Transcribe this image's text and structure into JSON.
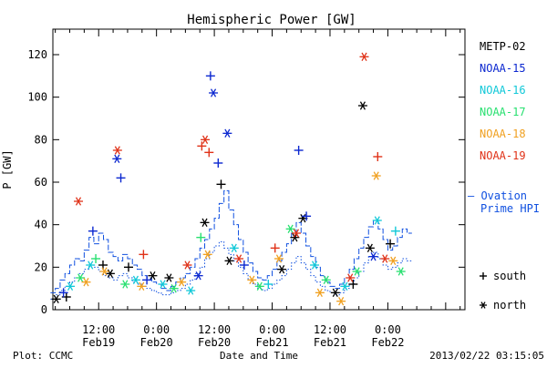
{
  "chart_data": {
    "type": "scatter",
    "title": "Hemispheric Power [GW]",
    "ylabel": "P [GW]",
    "xlabel": "Date and Time",
    "ylim": [
      0,
      132
    ],
    "yticks": [
      0,
      20,
      40,
      60,
      80,
      100,
      120
    ],
    "xlim_hours": [
      -21.5,
      64
    ],
    "xtick_labels": [
      {
        "top": "12:00",
        "bottom": "Feb19",
        "hour": -12
      },
      {
        "top": "0:00",
        "bottom": "Feb20",
        "hour": 0
      },
      {
        "top": "12:00",
        "bottom": "Feb20",
        "hour": 12
      },
      {
        "top": "0:00",
        "bottom": "Feb21",
        "hour": 24
      },
      {
        "top": "12:00",
        "bottom": "Feb21",
        "hour": 36
      },
      {
        "top": "0:00",
        "bottom": "Feb22",
        "hour": 48
      }
    ],
    "grid": false,
    "legend_position": "right",
    "legend": [
      {
        "name": "METP-02",
        "color": "#000000"
      },
      {
        "name": "NOAA-15",
        "color": "#0c28d0"
      },
      {
        "name": "NOAA-16",
        "color": "#10c8d8"
      },
      {
        "name": "NOAA-17",
        "color": "#28e070"
      },
      {
        "name": "NOAA-18",
        "color": "#f0a020"
      },
      {
        "name": "NOAA-19",
        "color": "#e03218"
      }
    ],
    "ovation_label": [
      "— Ovation",
      "Prime HPI"
    ],
    "ovation_color": "#1050e0",
    "marker_legend": [
      {
        "symbol": "+",
        "label": "south"
      },
      {
        "symbol": "*",
        "label": "north"
      }
    ],
    "ovation_north": [
      [
        -21.5,
        8
      ],
      [
        -20.5,
        10
      ],
      [
        -19.5,
        14
      ],
      [
        -18.5,
        17
      ],
      [
        -17.5,
        21
      ],
      [
        -16.5,
        24
      ],
      [
        -15.5,
        23
      ],
      [
        -14.5,
        28
      ],
      [
        -13.5,
        34
      ],
      [
        -12.5,
        31
      ],
      [
        -11.5,
        36
      ],
      [
        -10.5,
        33
      ],
      [
        -9.5,
        27
      ],
      [
        -8.5,
        25
      ],
      [
        -7.5,
        23
      ],
      [
        -6.5,
        26
      ],
      [
        -5.5,
        24
      ],
      [
        -4.5,
        21
      ],
      [
        -3.5,
        19
      ],
      [
        -2.5,
        16
      ],
      [
        -1.5,
        15
      ],
      [
        -0.5,
        13
      ],
      [
        0.5,
        12
      ],
      [
        1.5,
        10
      ],
      [
        2.5,
        9
      ],
      [
        3.5,
        11
      ],
      [
        4.5,
        13
      ],
      [
        5.5,
        15
      ],
      [
        6.5,
        17
      ],
      [
        7.5,
        20
      ],
      [
        8.5,
        24
      ],
      [
        9.5,
        29
      ],
      [
        10.5,
        33
      ],
      [
        11.5,
        38
      ],
      [
        12.5,
        43
      ],
      [
        13.5,
        50
      ],
      [
        14.5,
        56
      ],
      [
        15.5,
        47
      ],
      [
        16.5,
        40
      ],
      [
        17.5,
        33
      ],
      [
        18.5,
        27
      ],
      [
        19.5,
        22
      ],
      [
        20.5,
        18
      ],
      [
        21.5,
        15
      ],
      [
        22.5,
        14
      ],
      [
        23.5,
        16
      ],
      [
        24.5,
        19
      ],
      [
        25.5,
        23
      ],
      [
        26.5,
        27
      ],
      [
        27.5,
        31
      ],
      [
        28.5,
        36
      ],
      [
        29.5,
        41
      ],
      [
        30.5,
        36
      ],
      [
        31.5,
        30
      ],
      [
        32.5,
        25
      ],
      [
        33.5,
        20
      ],
      [
        34.5,
        16
      ],
      [
        35.5,
        13
      ],
      [
        36.5,
        11
      ],
      [
        37.5,
        10
      ],
      [
        38.5,
        12
      ],
      [
        39.5,
        15
      ],
      [
        40.5,
        19
      ],
      [
        41.5,
        24
      ],
      [
        42.5,
        29
      ],
      [
        43.5,
        34
      ],
      [
        44.5,
        39
      ],
      [
        45.5,
        42
      ],
      [
        46.5,
        38
      ],
      [
        47.5,
        33
      ],
      [
        48.5,
        28
      ],
      [
        49.5,
        30
      ],
      [
        50.5,
        34
      ],
      [
        51.5,
        38
      ],
      [
        52.5,
        36
      ]
    ],
    "ovation_south": [
      [
        -21.5,
        5
      ],
      [
        -20.5,
        7
      ],
      [
        -19.5,
        9
      ],
      [
        -18.5,
        11
      ],
      [
        -17.5,
        13
      ],
      [
        -16.5,
        15
      ],
      [
        -15.5,
        17
      ],
      [
        -14.5,
        19
      ],
      [
        -13.5,
        21
      ],
      [
        -12.5,
        20
      ],
      [
        -11.5,
        18
      ],
      [
        -10.5,
        16
      ],
      [
        -9.5,
        15
      ],
      [
        -8.5,
        14
      ],
      [
        -7.5,
        16
      ],
      [
        -6.5,
        17
      ],
      [
        -5.5,
        15
      ],
      [
        -4.5,
        13
      ],
      [
        -3.5,
        12
      ],
      [
        -2.5,
        11
      ],
      [
        -1.5,
        10
      ],
      [
        -0.5,
        9
      ],
      [
        0.5,
        8
      ],
      [
        1.5,
        7
      ],
      [
        2.5,
        7
      ],
      [
        3.5,
        8
      ],
      [
        4.5,
        9
      ],
      [
        5.5,
        10
      ],
      [
        6.5,
        12
      ],
      [
        7.5,
        14
      ],
      [
        8.5,
        17
      ],
      [
        9.5,
        20
      ],
      [
        10.5,
        24
      ],
      [
        11.5,
        27
      ],
      [
        12.5,
        30
      ],
      [
        13.5,
        32
      ],
      [
        14.5,
        29
      ],
      [
        15.5,
        26
      ],
      [
        16.5,
        23
      ],
      [
        17.5,
        20
      ],
      [
        18.5,
        17
      ],
      [
        19.5,
        14
      ],
      [
        20.5,
        12
      ],
      [
        21.5,
        10
      ],
      [
        22.5,
        9
      ],
      [
        23.5,
        10
      ],
      [
        24.5,
        12
      ],
      [
        25.5,
        14
      ],
      [
        26.5,
        16
      ],
      [
        27.5,
        19
      ],
      [
        28.5,
        22
      ],
      [
        29.5,
        25
      ],
      [
        30.5,
        22
      ],
      [
        31.5,
        19
      ],
      [
        32.5,
        16
      ],
      [
        33.5,
        13
      ],
      [
        34.5,
        11
      ],
      [
        35.5,
        9
      ],
      [
        36.5,
        8
      ],
      [
        37.5,
        7
      ],
      [
        38.5,
        8
      ],
      [
        39.5,
        10
      ],
      [
        40.5,
        12
      ],
      [
        41.5,
        15
      ],
      [
        42.5,
        18
      ],
      [
        43.5,
        22
      ],
      [
        44.5,
        25
      ],
      [
        45.5,
        27
      ],
      [
        46.5,
        24
      ],
      [
        47.5,
        21
      ],
      [
        48.5,
        19
      ],
      [
        49.5,
        20
      ],
      [
        50.5,
        22
      ],
      [
        51.5,
        24
      ],
      [
        52.5,
        23
      ]
    ],
    "series": [
      {
        "name": "METP-02",
        "points": [
          {
            "x": -20.8,
            "y": 5,
            "marker": "*"
          },
          {
            "x": -18.7,
            "y": 6,
            "marker": "+"
          },
          {
            "x": -11.1,
            "y": 21,
            "marker": "+"
          },
          {
            "x": -9.6,
            "y": 17,
            "marker": "*"
          },
          {
            "x": -5.8,
            "y": 20,
            "marker": "+"
          },
          {
            "x": -0.8,
            "y": 16,
            "marker": "*"
          },
          {
            "x": 2.6,
            "y": 15,
            "marker": "*"
          },
          {
            "x": 10.0,
            "y": 41,
            "marker": "*"
          },
          {
            "x": 13.4,
            "y": 59,
            "marker": "+"
          },
          {
            "x": 15.1,
            "y": 23,
            "marker": "*"
          },
          {
            "x": 26.0,
            "y": 19,
            "marker": "*"
          },
          {
            "x": 28.7,
            "y": 34,
            "marker": "*"
          },
          {
            "x": 30.4,
            "y": 43,
            "marker": "*"
          },
          {
            "x": 37.1,
            "y": 8,
            "marker": "*"
          },
          {
            "x": 40.8,
            "y": 12,
            "marker": "+"
          },
          {
            "x": 42.8,
            "y": 96,
            "marker": "*"
          },
          {
            "x": 44.3,
            "y": 29,
            "marker": "*"
          },
          {
            "x": 48.5,
            "y": 31,
            "marker": "+"
          }
        ]
      },
      {
        "name": "NOAA-15",
        "points": [
          {
            "x": -19.3,
            "y": 8,
            "marker": "+"
          },
          {
            "x": -13.2,
            "y": 37,
            "marker": "+"
          },
          {
            "x": -8.2,
            "y": 71,
            "marker": "*"
          },
          {
            "x": -7.4,
            "y": 62,
            "marker": "+"
          },
          {
            "x": -2.0,
            "y": 14,
            "marker": "+"
          },
          {
            "x": 8.7,
            "y": 16,
            "marker": "*"
          },
          {
            "x": 11.2,
            "y": 110,
            "marker": "+"
          },
          {
            "x": 11.8,
            "y": 102,
            "marker": "*"
          },
          {
            "x": 12.8,
            "y": 69,
            "marker": "+"
          },
          {
            "x": 14.7,
            "y": 83,
            "marker": "*"
          },
          {
            "x": 18.2,
            "y": 21,
            "marker": "+"
          },
          {
            "x": 29.5,
            "y": 75,
            "marker": "+"
          },
          {
            "x": 31.1,
            "y": 44,
            "marker": "+"
          },
          {
            "x": 45.0,
            "y": 25,
            "marker": "*"
          }
        ]
      },
      {
        "name": "NOAA-16",
        "points": [
          {
            "x": -17.9,
            "y": 11,
            "marker": "*"
          },
          {
            "x": -13.7,
            "y": 21,
            "marker": "*"
          },
          {
            "x": -4.3,
            "y": 14,
            "marker": "*"
          },
          {
            "x": 1.3,
            "y": 12,
            "marker": "*"
          },
          {
            "x": 7.1,
            "y": 9,
            "marker": "*"
          },
          {
            "x": 16.1,
            "y": 29,
            "marker": "*"
          },
          {
            "x": 23.2,
            "y": 12,
            "marker": "+"
          },
          {
            "x": 32.8,
            "y": 21,
            "marker": "*"
          },
          {
            "x": 39.1,
            "y": 11,
            "marker": "*"
          },
          {
            "x": 45.8,
            "y": 42,
            "marker": "*"
          },
          {
            "x": 49.6,
            "y": 37,
            "marker": "+"
          }
        ]
      },
      {
        "name": "NOAA-17",
        "points": [
          {
            "x": -15.8,
            "y": 15,
            "marker": "*"
          },
          {
            "x": -12.6,
            "y": 24,
            "marker": "+"
          },
          {
            "x": -6.5,
            "y": 12,
            "marker": "*"
          },
          {
            "x": 3.6,
            "y": 10,
            "marker": "*"
          },
          {
            "x": 9.2,
            "y": 34,
            "marker": "+"
          },
          {
            "x": 21.4,
            "y": 11,
            "marker": "*"
          },
          {
            "x": 27.8,
            "y": 38,
            "marker": "*"
          },
          {
            "x": 35.2,
            "y": 14,
            "marker": "*"
          },
          {
            "x": 41.6,
            "y": 18,
            "marker": "*"
          },
          {
            "x": 50.7,
            "y": 18,
            "marker": "*"
          }
        ]
      },
      {
        "name": "NOAA-18",
        "points": [
          {
            "x": -14.6,
            "y": 13,
            "marker": "*"
          },
          {
            "x": -10.8,
            "y": 18,
            "marker": "*"
          },
          {
            "x": -3.1,
            "y": 11,
            "marker": "*"
          },
          {
            "x": 5.2,
            "y": 13,
            "marker": "*"
          },
          {
            "x": 10.6,
            "y": 26,
            "marker": "*"
          },
          {
            "x": 19.8,
            "y": 14,
            "marker": "*"
          },
          {
            "x": 25.4,
            "y": 24,
            "marker": "*"
          },
          {
            "x": 33.9,
            "y": 8,
            "marker": "*"
          },
          {
            "x": 38.3,
            "y": 4,
            "marker": "*"
          },
          {
            "x": 45.6,
            "y": 63,
            "marker": "*"
          },
          {
            "x": 49.1,
            "y": 23,
            "marker": "*"
          }
        ]
      },
      {
        "name": "NOAA-19",
        "points": [
          {
            "x": -16.2,
            "y": 51,
            "marker": "*"
          },
          {
            "x": -8.1,
            "y": 75,
            "marker": "*"
          },
          {
            "x": -2.7,
            "y": 26,
            "marker": "+"
          },
          {
            "x": 6.4,
            "y": 21,
            "marker": "*"
          },
          {
            "x": 9.4,
            "y": 77,
            "marker": "+"
          },
          {
            "x": 10.1,
            "y": 80,
            "marker": "*"
          },
          {
            "x": 10.9,
            "y": 74,
            "marker": "+"
          },
          {
            "x": 17.1,
            "y": 24,
            "marker": "*"
          },
          {
            "x": 24.6,
            "y": 29,
            "marker": "+"
          },
          {
            "x": 29.0,
            "y": 36,
            "marker": "*"
          },
          {
            "x": 40.2,
            "y": 15,
            "marker": "*"
          },
          {
            "x": 43.1,
            "y": 119,
            "marker": "*"
          },
          {
            "x": 45.9,
            "y": 72,
            "marker": "+"
          },
          {
            "x": 47.4,
            "y": 24,
            "marker": "*"
          }
        ]
      }
    ]
  },
  "footer": {
    "source": "Plot: CCMC",
    "xlabel": "Date and Time",
    "timestamp": "2013/02/22 03:15:05"
  }
}
